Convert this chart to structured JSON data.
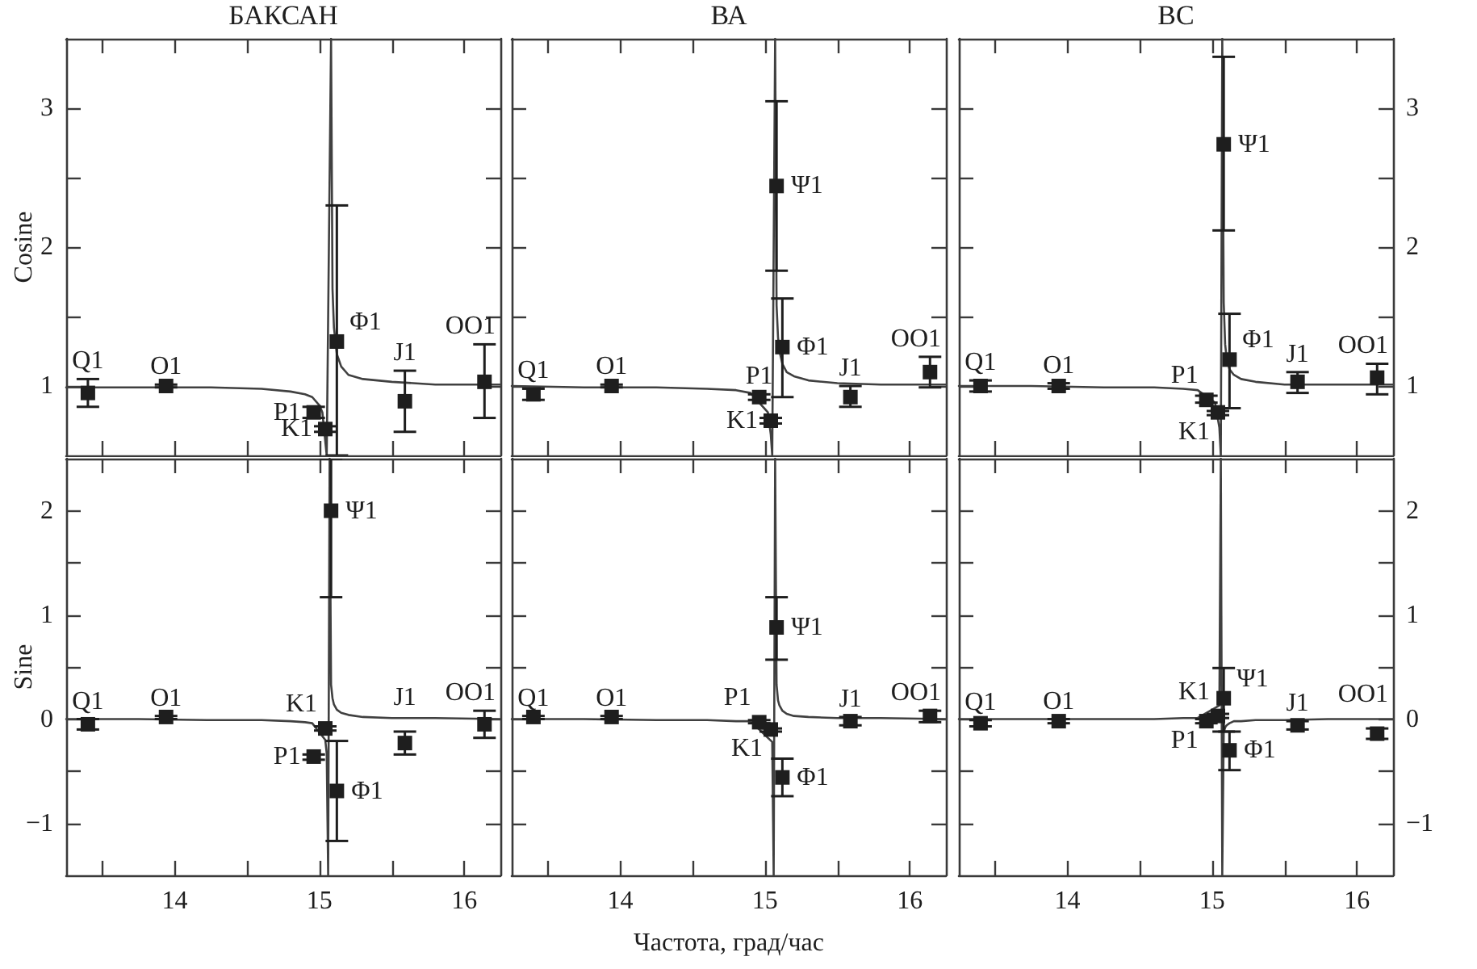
{
  "chart_data": [
    {
      "type": "scatter",
      "title": "БАКСАН",
      "ylabel": "Cosine",
      "xlim": [
        13.25,
        16.25
      ],
      "xticks": [
        {
          "value": 13.5,
          "label": null
        },
        14,
        {
          "value": 14.5,
          "label": null
        },
        15,
        {
          "value": 15.5,
          "label": null
        },
        16
      ],
      "ylim": [
        0.5,
        3.5
      ],
      "yticks": [
        1,
        {
          "value": 1.5,
          "label": null
        },
        2,
        {
          "value": 2.5,
          "label": null
        },
        3
      ],
      "tick_labels": "y",
      "marker": "square",
      "series": [
        {
          "type": "line",
          "color": "#404040",
          "marker": "none",
          "x": [
            13.25,
            13.75,
            14.25,
            14.6,
            14.8,
            14.9,
            14.95,
            15.0,
            15.02,
            15.05,
            15.08,
            15.09,
            15.1,
            15.12,
            15.15,
            15.2,
            15.3,
            15.5,
            15.8,
            16.25
          ],
          "values": [
            0.99,
            0.99,
            0.99,
            0.98,
            0.96,
            0.94,
            0.92,
            0.86,
            0.81,
            0.5,
            3.5,
            1.7,
            1.42,
            1.23,
            1.14,
            1.08,
            1.05,
            1.03,
            1.01,
            1.01
          ]
        },
        {
          "color": "#1e1e1e",
          "x": [
            13.4,
            13.94,
            14.96,
            15.04,
            15.12,
            15.59,
            16.14
          ],
          "values": [
            0.95,
            1.0,
            0.81,
            0.69,
            1.32,
            0.89,
            1.03
          ],
          "errors": [
            [
              0.85,
              1.05
            ],
            [
              0.99,
              1.01
            ],
            [
              0.77,
              0.85
            ],
            [
              0.67,
              0.71
            ],
            [
              0.5,
              2.3
            ],
            [
              0.67,
              1.11
            ],
            [
              0.77,
              1.3
            ]
          ]
        }
      ],
      "annotations": [
        {
          "text": "Q1",
          "x": 13.4,
          "y": 0.95
        },
        {
          "text": "O1",
          "x": 13.94,
          "y": 1.0
        },
        {
          "text": "P1",
          "x": 14.96,
          "y": 0.81
        },
        {
          "text": "K1",
          "x": 15.04,
          "y": 0.69
        },
        {
          "text": "Φ1",
          "x": 15.12,
          "y": 1.32
        },
        {
          "text": "J1",
          "x": 15.59,
          "y": 0.89
        },
        {
          "text": "OO1",
          "x": 16.14,
          "y": 1.03
        }
      ]
    },
    {
      "type": "scatter",
      "title": "ВА",
      "xlim": [
        13.25,
        16.25
      ],
      "xticks": [
        {
          "value": 13.5,
          "label": null
        },
        14,
        {
          "value": 14.5,
          "label": null
        },
        15,
        {
          "value": 15.5,
          "label": null
        },
        16
      ],
      "ylim": [
        0.5,
        3.5
      ],
      "yticks": [
        1,
        {
          "value": 1.5,
          "label": null
        },
        2,
        {
          "value": 2.5,
          "label": null
        },
        3
      ],
      "tick_labels": false,
      "marker": "square",
      "series": [
        {
          "type": "line",
          "color": "#404040",
          "marker": "none",
          "x": [
            13.25,
            13.75,
            14.25,
            14.6,
            14.8,
            14.9,
            15.02,
            15.04,
            15.05,
            15.07,
            15.08,
            15.09,
            15.1,
            15.12,
            15.15,
            15.2,
            15.3,
            15.5,
            15.8,
            16.25
          ],
          "values": [
            1.0,
            0.99,
            0.99,
            0.98,
            0.97,
            0.95,
            0.81,
            0.65,
            0.5,
            3.5,
            1.58,
            1.35,
            1.25,
            1.16,
            1.1,
            1.07,
            1.04,
            1.02,
            1.01,
            1.01
          ]
        },
        {
          "color": "#1e1e1e",
          "x": [
            13.4,
            13.94,
            14.96,
            15.04,
            15.08,
            15.12,
            15.59,
            16.14
          ],
          "values": [
            0.94,
            1.0,
            0.92,
            0.75,
            2.44,
            1.28,
            0.92,
            1.1
          ],
          "errors": [
            [
              0.9,
              0.98
            ],
            [
              0.99,
              1.01
            ],
            [
              0.9,
              0.94
            ],
            [
              0.73,
              0.77
            ],
            [
              1.83,
              3.05
            ],
            [
              0.92,
              1.63
            ],
            [
              0.85,
              1.0
            ],
            [
              0.99,
              1.21
            ]
          ]
        }
      ],
      "annotations": [
        {
          "text": "Q1",
          "x": 13.4,
          "y": 0.94
        },
        {
          "text": "O1",
          "x": 13.94,
          "y": 1.0
        },
        {
          "text": "P1",
          "x": 14.96,
          "y": 0.92
        },
        {
          "text": "K1",
          "x": 15.04,
          "y": 0.75
        },
        {
          "text": "Ψ1",
          "x": 15.08,
          "y": 2.44
        },
        {
          "text": "Φ1",
          "x": 15.12,
          "y": 1.28
        },
        {
          "text": "J1",
          "x": 15.59,
          "y": 0.92
        },
        {
          "text": "OO1",
          "x": 16.14,
          "y": 1.1
        }
      ]
    },
    {
      "type": "scatter",
      "title": "ВС",
      "xlim": [
        13.25,
        16.25
      ],
      "xticks": [
        {
          "value": 13.5,
          "label": null
        },
        14,
        {
          "value": 14.5,
          "label": null
        },
        15,
        {
          "value": 15.5,
          "label": null
        },
        16
      ],
      "ylim": [
        0.5,
        3.5
      ],
      "yticks": [
        1,
        {
          "value": 1.5,
          "label": null
        },
        2,
        {
          "value": 2.5,
          "label": null
        },
        3
      ],
      "tick_labels": "y",
      "marker": "square",
      "series": [
        {
          "type": "line",
          "color": "#404040",
          "marker": "none",
          "x": [
            13.25,
            13.75,
            14.25,
            14.6,
            14.8,
            14.9,
            15.02,
            15.05,
            15.06,
            15.07,
            15.08,
            15.09,
            15.1,
            15.12,
            15.15,
            15.2,
            15.3,
            15.5,
            15.8,
            16.25
          ],
          "values": [
            1.0,
            1.0,
            0.99,
            0.99,
            0.98,
            0.97,
            0.88,
            0.7,
            0.5,
            3.5,
            1.6,
            1.3,
            1.2,
            1.12,
            1.08,
            1.05,
            1.03,
            1.01,
            1.01,
            1.01
          ]
        },
        {
          "color": "#1e1e1e",
          "x": [
            13.4,
            13.94,
            14.96,
            15.04,
            15.08,
            15.12,
            15.59,
            16.14
          ],
          "values": [
            1.0,
            1.0,
            0.9,
            0.81,
            2.74,
            1.19,
            1.03,
            1.06
          ],
          "errors": [
            [
              0.96,
              1.04
            ],
            [
              0.98,
              1.02
            ],
            [
              0.88,
              0.93
            ],
            [
              0.79,
              0.82
            ],
            [
              2.12,
              3.37
            ],
            [
              0.84,
              1.52
            ],
            [
              0.95,
              1.1
            ],
            [
              0.94,
              1.16
            ]
          ]
        }
      ],
      "annotations": [
        {
          "text": "Q1",
          "x": 13.4,
          "y": 1.0
        },
        {
          "text": "O1",
          "x": 13.94,
          "y": 1.0
        },
        {
          "text": "P1",
          "x": 14.96,
          "y": 0.9
        },
        {
          "text": "K1",
          "x": 15.04,
          "y": 0.81
        },
        {
          "text": "Ψ1",
          "x": 15.08,
          "y": 2.74
        },
        {
          "text": "Φ1",
          "x": 15.12,
          "y": 1.19
        },
        {
          "text": "J1",
          "x": 15.59,
          "y": 1.03
        },
        {
          "text": "OO1",
          "x": 16.14,
          "y": 1.06
        }
      ]
    },
    {
      "type": "scatter",
      "ylabel": "Sine",
      "xlim": [
        13.25,
        16.25
      ],
      "xticks": [
        {
          "value": 13.5,
          "label": null
        },
        14,
        {
          "value": 14.5,
          "label": null
        },
        15,
        {
          "value": 15.5,
          "label": null
        },
        16
      ],
      "ylim": [
        -1.5,
        2.5
      ],
      "yticks": [
        {
          "value": -1,
          "label": "−1"
        },
        {
          "value": -0.5,
          "label": null
        },
        0,
        {
          "value": 0.5,
          "label": null
        },
        1,
        {
          "value": 1.5,
          "label": null
        },
        2
      ],
      "marker": "square",
      "series": [
        {
          "type": "line",
          "color": "#404040",
          "marker": "none",
          "x": [
            13.25,
            13.75,
            14.25,
            14.6,
            14.8,
            14.9,
            14.95,
            15.04,
            15.05,
            15.06,
            15.07,
            15.08,
            15.09,
            15.1,
            15.12,
            15.15,
            15.2,
            15.3,
            15.5,
            15.8,
            16.25
          ],
          "values": [
            0.0,
            0.0,
            -0.01,
            -0.01,
            -0.02,
            -0.03,
            -0.04,
            -0.2,
            -0.33,
            -1.5,
            2.5,
            0.33,
            0.2,
            0.14,
            0.09,
            0.06,
            0.04,
            0.02,
            0.01,
            0.01,
            0.0
          ]
        },
        {
          "color": "#1e1e1e",
          "x": [
            13.4,
            13.94,
            14.96,
            15.04,
            15.08,
            15.12,
            15.59,
            16.14
          ],
          "values": [
            -0.05,
            0.02,
            -0.36,
            -0.09,
            2.0,
            -0.69,
            -0.23,
            -0.05
          ],
          "errors": [
            [
              -0.1,
              0.0
            ],
            [
              0.0,
              0.03
            ],
            [
              -0.39,
              -0.34
            ],
            [
              -0.11,
              -0.07
            ],
            [
              1.17,
              2.5
            ],
            [
              -1.17,
              -0.21
            ],
            [
              -0.34,
              -0.12
            ],
            [
              -0.18,
              0.08
            ]
          ]
        }
      ],
      "annotations": [
        {
          "text": "Q1",
          "x": 13.4,
          "y": -0.05
        },
        {
          "text": "O1",
          "x": 13.94,
          "y": 0.02
        },
        {
          "text": "P1",
          "x": 14.96,
          "y": -0.36
        },
        {
          "text": "K1",
          "x": 15.04,
          "y": -0.09
        },
        {
          "text": "Ψ1",
          "x": 15.08,
          "y": 2.0
        },
        {
          "text": "Φ1",
          "x": 15.12,
          "y": -0.69
        },
        {
          "text": "J1",
          "x": 15.59,
          "y": -0.23
        },
        {
          "text": "OO1",
          "x": 16.14,
          "y": -0.05
        }
      ]
    },
    {
      "type": "scatter",
      "xlabel": "Частота, град/час",
      "xlim": [
        13.25,
        16.25
      ],
      "xticks": [
        {
          "value": 13.5,
          "label": null
        },
        14,
        {
          "value": 14.5,
          "label": null
        },
        15,
        {
          "value": 15.5,
          "label": null
        },
        16
      ],
      "ylim": [
        -1.5,
        2.5
      ],
      "yticks": [
        -1,
        {
          "value": -0.5,
          "label": null
        },
        0,
        {
          "value": 0.5,
          "label": null
        },
        1,
        {
          "value": 1.5,
          "label": null
        },
        2
      ],
      "tick_labels": "x",
      "marker": "square",
      "series": [
        {
          "type": "line",
          "color": "#404040",
          "marker": "none",
          "x": [
            13.25,
            13.75,
            14.25,
            14.6,
            14.8,
            14.9,
            15.05,
            15.06,
            15.07,
            15.08,
            15.09,
            15.1,
            15.12,
            15.15,
            15.2,
            15.3,
            15.5,
            15.8,
            16.25
          ],
          "values": [
            0.0,
            0.0,
            -0.01,
            -0.01,
            -0.02,
            -0.02,
            -0.22,
            -1.5,
            2.5,
            0.33,
            0.18,
            0.13,
            0.08,
            0.05,
            0.03,
            0.02,
            0.01,
            0.01,
            0.0
          ]
        },
        {
          "color": "#1e1e1e",
          "x": [
            13.4,
            13.94,
            14.96,
            15.04,
            15.08,
            15.12,
            15.59,
            16.14
          ],
          "values": [
            0.02,
            0.02,
            -0.03,
            -0.1,
            0.88,
            -0.56,
            -0.02,
            0.03
          ],
          "errors": [
            [
              0.0,
              0.03
            ],
            [
              0.0,
              0.03
            ],
            [
              -0.04,
              -0.01
            ],
            [
              -0.12,
              -0.09
            ],
            [
              0.57,
              1.17
            ],
            [
              -0.74,
              -0.38
            ],
            [
              -0.06,
              0.02
            ],
            [
              -0.03,
              0.08
            ]
          ]
        }
      ],
      "annotations": [
        {
          "text": "Q1",
          "x": 13.4,
          "y": 0.02
        },
        {
          "text": "O1",
          "x": 13.94,
          "y": 0.02
        },
        {
          "text": "P1",
          "x": 14.96,
          "y": -0.03
        },
        {
          "text": "K1",
          "x": 15.04,
          "y": -0.1
        },
        {
          "text": "Ψ1",
          "x": 15.08,
          "y": 0.88
        },
        {
          "text": "Φ1",
          "x": 15.12,
          "y": -0.56
        },
        {
          "text": "J1",
          "x": 15.59,
          "y": -0.02
        },
        {
          "text": "OO1",
          "x": 16.14,
          "y": 0.03
        }
      ]
    },
    {
      "type": "scatter",
      "xlim": [
        13.25,
        16.25
      ],
      "xticks": [
        {
          "value": 13.5,
          "label": null
        },
        14,
        {
          "value": 14.5,
          "label": null
        },
        15,
        {
          "value": 15.5,
          "label": null
        },
        16
      ],
      "ylim": [
        -1.5,
        2.5
      ],
      "yticks": [
        {
          "value": -1,
          "label": "−1"
        },
        {
          "value": -0.5,
          "label": null
        },
        0,
        {
          "value": 0.5,
          "label": null
        },
        1,
        {
          "value": 1.5,
          "label": null
        },
        2
      ],
      "marker": "square",
      "series": [
        {
          "type": "line",
          "color": "#404040",
          "marker": "none",
          "x": [
            13.25,
            13.75,
            14.25,
            14.6,
            14.8,
            14.9,
            15.05,
            15.06,
            15.07,
            15.08,
            15.09,
            15.1,
            15.12,
            15.15,
            15.2,
            15.3,
            15.5,
            15.8,
            16.25
          ],
          "values": [
            0.0,
            0.0,
            0.0,
            0.0,
            0.01,
            0.01,
            0.13,
            2.5,
            -1.5,
            -0.13,
            -0.08,
            -0.06,
            -0.04,
            -0.02,
            -0.02,
            -0.01,
            -0.01,
            0.0,
            0.0
          ]
        },
        {
          "color": "#1e1e1e",
          "x": [
            13.4,
            13.94,
            14.96,
            15.04,
            15.08,
            15.12,
            15.59,
            16.14
          ],
          "values": [
            -0.04,
            -0.02,
            -0.02,
            0.03,
            0.2,
            -0.3,
            -0.06,
            -0.14
          ],
          "errors": [
            [
              -0.07,
              -0.01
            ],
            [
              -0.04,
              0.0
            ],
            [
              -0.04,
              0.0
            ],
            [
              0.01,
              0.05
            ],
            [
              -0.12,
              0.49
            ],
            [
              -0.49,
              -0.12
            ],
            [
              -0.1,
              -0.02
            ],
            [
              -0.19,
              -0.09
            ]
          ]
        }
      ],
      "annotations": [
        {
          "text": "Q1",
          "x": 13.4,
          "y": -0.04
        },
        {
          "text": "O1",
          "x": 13.94,
          "y": -0.02
        },
        {
          "text": "P1",
          "x": 14.96,
          "y": -0.02
        },
        {
          "text": "K1",
          "x": 15.04,
          "y": 0.03
        },
        {
          "text": "Ψ1",
          "x": 15.08,
          "y": 0.2
        },
        {
          "text": "Φ1",
          "x": 15.12,
          "y": -0.3
        },
        {
          "text": "J1",
          "x": 15.59,
          "y": -0.06
        },
        {
          "text": "OO1",
          "x": 16.14,
          "y": -0.14
        }
      ]
    }
  ]
}
